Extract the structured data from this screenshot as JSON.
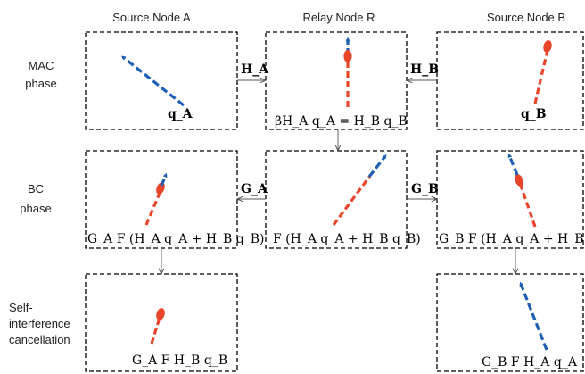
{
  "columns": {
    "a": "Source Node A",
    "r": "Relay Node R",
    "b": "Source Node B"
  },
  "rows": {
    "mac": [
      "MAC",
      "phase"
    ],
    "bc": [
      "BC",
      "phase"
    ],
    "sic": [
      "Self-",
      "interference",
      "cancellation"
    ]
  },
  "channels": {
    "ha": "H_A",
    "hb": "H_B",
    "ga": "G_A",
    "gb": "G_B"
  },
  "labels": {
    "qa": "q_A",
    "qb": "q_B",
    "relay_mac": "βH_A q_A = H_B q_B",
    "a_bc": "G_A F (H_A q_A + H_B q_B)",
    "r_bc": "F (H_A q_A + H_B q_B)",
    "b_bc": "G_B F (H_A q_A + H_B q_B)",
    "a_sic": "G_A F H_B q_B",
    "b_sic": "G_B F H_A q_A"
  },
  "colors": {
    "signal_a": "#1f5fb4",
    "signal_b": "#e8452a"
  }
}
